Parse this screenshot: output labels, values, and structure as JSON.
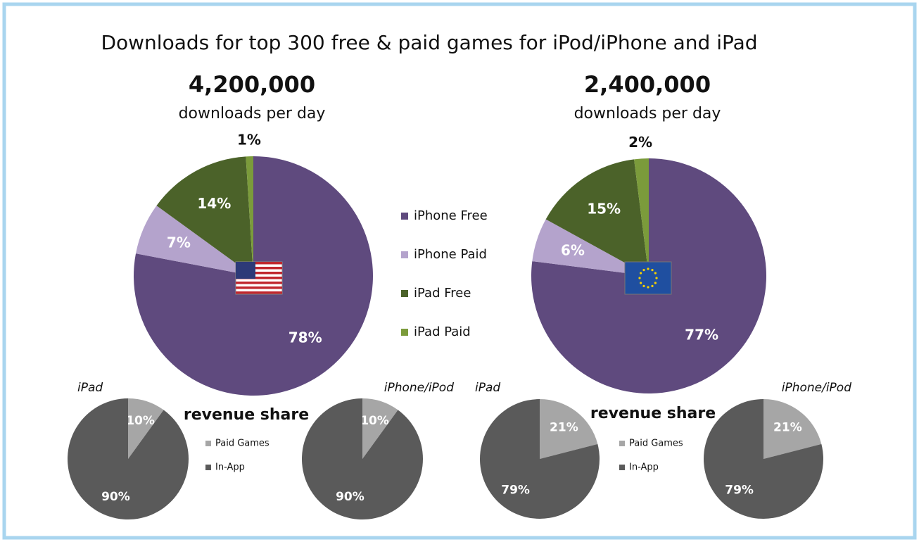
{
  "title": "Downloads for top 300 free & paid games for iPod/iPhone and iPad",
  "chart_data": [
    {
      "type": "pie",
      "headline": "4,200,000",
      "subtitle": "downloads per day",
      "categories": [
        "iPhone Free",
        "iPhone Paid",
        "iPad Free",
        "iPad Paid"
      ],
      "values": [
        78,
        7,
        14,
        1
      ],
      "value_labels": [
        "78%",
        "7%",
        "14%",
        "1%"
      ],
      "colors": [
        "#5f4a7e",
        "#b4a3cc",
        "#4b6229",
        "#7b9b3b"
      ]
    },
    {
      "type": "pie",
      "headline": "2,400,000",
      "subtitle": "downloads per day",
      "categories": [
        "iPhone Free",
        "iPhone Paid",
        "iPad Free",
        "iPad Paid"
      ],
      "values": [
        77,
        6,
        15,
        2
      ],
      "value_labels": [
        "77%",
        "6%",
        "15%",
        "2%"
      ],
      "colors": [
        "#5f4a7e",
        "#b4a3cc",
        "#4b6229",
        "#7b9b3b"
      ]
    },
    {
      "type": "pie",
      "title": "iPad",
      "legend_title": "revenue share",
      "categories": [
        "Paid Games",
        "In-App"
      ],
      "values": [
        10,
        90
      ],
      "value_labels": [
        "10%",
        "90%"
      ],
      "colors": [
        "#a6a6a6",
        "#5a5a5a"
      ]
    },
    {
      "type": "pie",
      "title": "iPhone/iPod",
      "categories": [
        "Paid Games",
        "In-App"
      ],
      "values": [
        10,
        90
      ],
      "value_labels": [
        "10%",
        "90%"
      ],
      "colors": [
        "#a6a6a6",
        "#5a5a5a"
      ]
    },
    {
      "type": "pie",
      "title": "iPad",
      "legend_title": "revenue share",
      "categories": [
        "Paid Games",
        "In-App"
      ],
      "values": [
        21,
        79
      ],
      "value_labels": [
        "21%",
        "79%"
      ],
      "colors": [
        "#a6a6a6",
        "#5a5a5a"
      ]
    },
    {
      "type": "pie",
      "title": "iPhone/iPod",
      "categories": [
        "Paid Games",
        "In-App"
      ],
      "values": [
        21,
        79
      ],
      "value_labels": [
        "21%",
        "79%"
      ],
      "colors": [
        "#a6a6a6",
        "#5a5a5a"
      ]
    }
  ]
}
